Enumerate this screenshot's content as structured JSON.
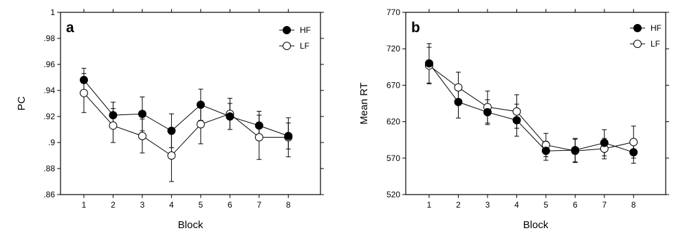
{
  "chart_data": [
    {
      "panel": "a",
      "type": "line",
      "xlabel": "Block",
      "ylabel": "PC",
      "x": [
        1,
        2,
        3,
        4,
        5,
        6,
        7,
        8
      ],
      "xticks": [
        "1",
        "2",
        "3",
        "4",
        "5",
        "6",
        "7",
        "8"
      ],
      "ylim": [
        0.86,
        1.0
      ],
      "yticks": [
        ".86",
        ".88",
        ".9",
        ".92",
        ".94",
        ".96",
        ".98",
        "1"
      ],
      "series": [
        {
          "name": "HF",
          "marker": "filled-circle",
          "values": [
            0.948,
            0.921,
            0.922,
            0.909,
            0.929,
            0.92,
            0.913,
            0.905
          ],
          "errors": [
            0.009,
            0.01,
            0.013,
            0.013,
            0.012,
            0.01,
            0.011,
            0.01
          ]
        },
        {
          "name": "LF",
          "marker": "open-circle",
          "values": [
            0.938,
            0.913,
            0.905,
            0.89,
            0.914,
            0.922,
            0.904,
            0.904
          ],
          "errors": [
            0.015,
            0.013,
            0.013,
            0.02,
            0.015,
            0.012,
            0.017,
            0.015
          ]
        }
      ],
      "legend_position": "top-right",
      "grid": false
    },
    {
      "panel": "b",
      "type": "line",
      "xlabel": "Block",
      "ylabel": "Mean RT",
      "x": [
        1,
        2,
        3,
        4,
        5,
        6,
        7,
        8
      ],
      "xticks": [
        "1",
        "2",
        "3",
        "4",
        "5",
        "6",
        "7",
        "8"
      ],
      "ylim": [
        520,
        770
      ],
      "yticks": [
        "520",
        "570",
        "620",
        "670",
        "720",
        "770"
      ],
      "series": [
        {
          "name": "HF",
          "marker": "filled-circle",
          "values": [
            700,
            647,
            633,
            622,
            580,
            581,
            591,
            578
          ],
          "errors": [
            27,
            22,
            17,
            22,
            13,
            16,
            18,
            15
          ]
        },
        {
          "name": "LF",
          "marker": "open-circle",
          "values": [
            697,
            667,
            640,
            634,
            588,
            580,
            583,
            592
          ],
          "errors": [
            25,
            21,
            22,
            23,
            16,
            16,
            14,
            22
          ]
        }
      ],
      "legend_position": "top-right",
      "grid": false
    }
  ]
}
